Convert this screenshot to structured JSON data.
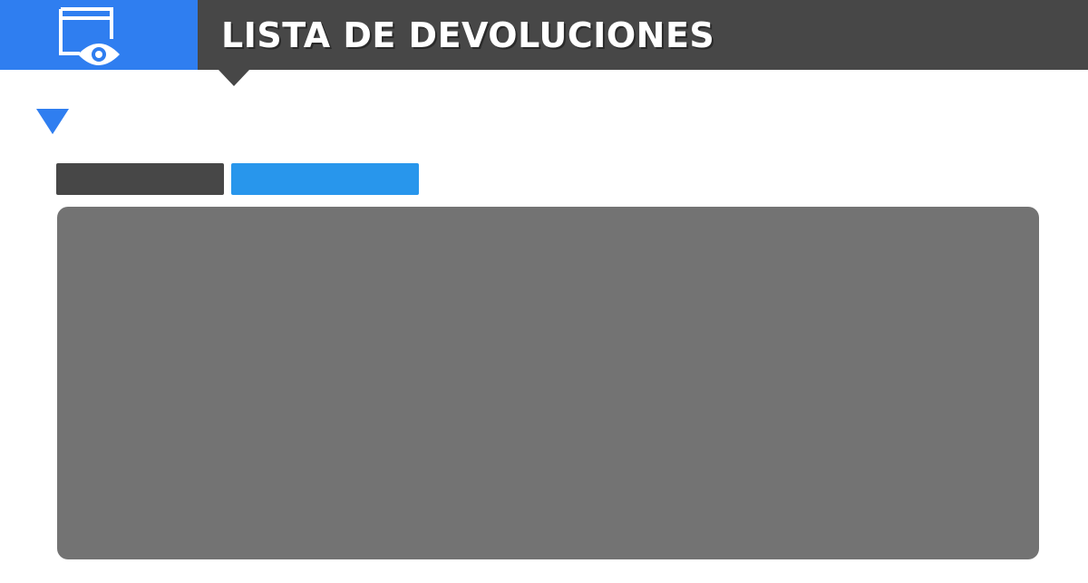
{
  "header": {
    "title": "LISTA DE DEVOLUCIONES",
    "icon": "window-eye-icon",
    "colors": {
      "bar": "#474747",
      "icon_box": "#2f7ef0",
      "title_text": "#ffffff"
    }
  },
  "section": {
    "toggle_icon": "triangle-down-icon",
    "toggle_color": "#2f7ef0"
  },
  "tabs": [
    {
      "color": "#474747"
    },
    {
      "color": "#2896ec"
    }
  ],
  "content_panel": {
    "color": "#737373"
  }
}
